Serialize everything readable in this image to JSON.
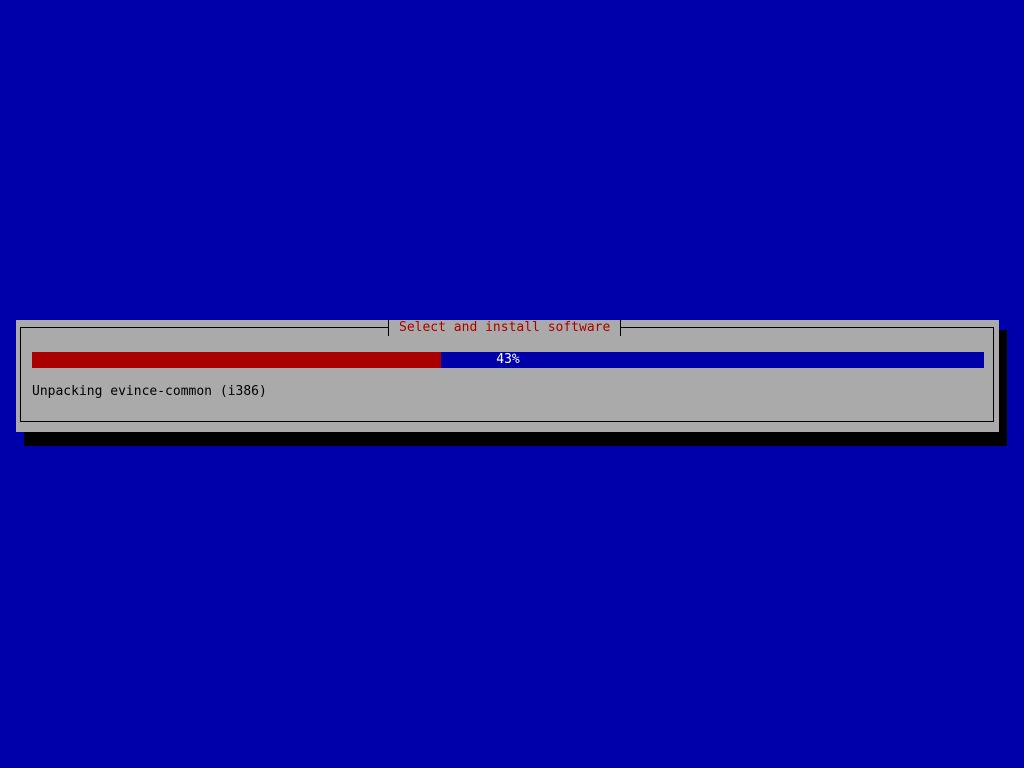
{
  "dialog": {
    "title": "Select and install software",
    "progress": {
      "percent": 43,
      "label": "43%"
    },
    "status": "Unpacking evince-common (i386)"
  },
  "colors": {
    "background": "#0000aa",
    "dialog": "#aaaaaa",
    "progress_fill": "#aa0000",
    "title": "#aa0000"
  }
}
